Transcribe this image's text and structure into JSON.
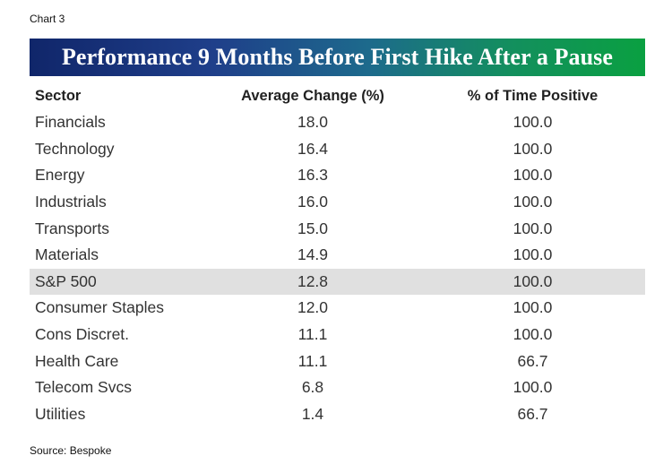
{
  "chart_label": "Chart 3",
  "chart_data": {
    "type": "table",
    "title": "Performance 9 Months Before First Hike After a Pause",
    "columns": [
      "Sector",
      "Average Change (%)",
      "% of Time Positive"
    ],
    "rows": [
      {
        "sector": "Financials",
        "avg_change": "18.0",
        "pct_positive": "100.0"
      },
      {
        "sector": "Technology",
        "avg_change": "16.4",
        "pct_positive": "100.0"
      },
      {
        "sector": "Energy",
        "avg_change": "16.3",
        "pct_positive": "100.0"
      },
      {
        "sector": "Industrials",
        "avg_change": "16.0",
        "pct_positive": "100.0"
      },
      {
        "sector": "Transports",
        "avg_change": "15.0",
        "pct_positive": "100.0"
      },
      {
        "sector": "Materials",
        "avg_change": "14.9",
        "pct_positive": "100.0"
      },
      {
        "sector": "S&P 500",
        "avg_change": "12.8",
        "pct_positive": "100.0",
        "highlight": true
      },
      {
        "sector": "Consumer Staples",
        "avg_change": "12.0",
        "pct_positive": "100.0"
      },
      {
        "sector": "Cons Discret.",
        "avg_change": "11.1",
        "pct_positive": "100.0"
      },
      {
        "sector": "Health Care",
        "avg_change": "11.1",
        "pct_positive": "66.7"
      },
      {
        "sector": "Telecom Svcs",
        "avg_change": "6.8",
        "pct_positive": "100.0"
      },
      {
        "sector": "Utilities",
        "avg_change": "1.4",
        "pct_positive": "66.7"
      }
    ]
  },
  "source": "Source: Bespoke",
  "colors": {
    "banner_start": "#10266a",
    "banner_end": "#0aa041",
    "highlight_row": "#e0e0e0"
  }
}
